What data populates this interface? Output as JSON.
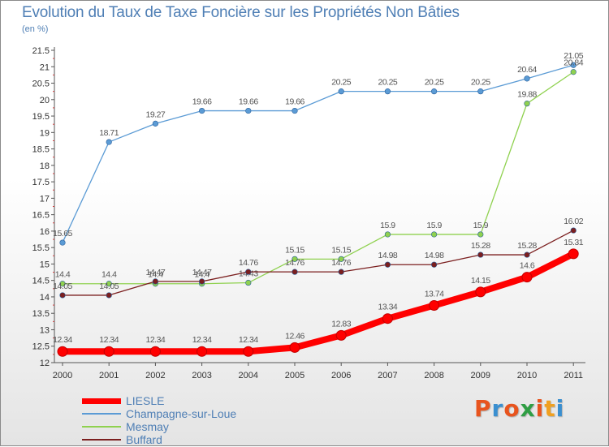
{
  "header": {
    "title": "Evolution du Taux de Taxe Foncière sur les Propriétés Non Bâties",
    "subtitle": "(en %)"
  },
  "brand": {
    "name": "Proxiti",
    "letter_colors": [
      "#e8541e",
      "#3a8fd0",
      "#e8541e",
      "#2f9e44",
      "#e8541e",
      "#f0a020",
      "#3a8fd0"
    ]
  },
  "chart_data": {
    "type": "line",
    "title": "Evolution du Taux de Taxe Foncière sur les Propriétés Non Bâties",
    "ylabel": "(en %)",
    "xlabel": "",
    "x": [
      "2000",
      "2001",
      "2002",
      "2003",
      "2004",
      "2005",
      "2006",
      "2007",
      "2008",
      "2009",
      "2010",
      "2011"
    ],
    "ylim": [
      12,
      21.5
    ],
    "yticks": [
      "12",
      "12.5",
      "13",
      "13.5",
      "14",
      "14.5",
      "15",
      "15.5",
      "16",
      "16.5",
      "17",
      "17.5",
      "18",
      "18.5",
      "19",
      "19.5",
      "20",
      "20.5",
      "21",
      "21.5"
    ],
    "grid": false,
    "legend_position": "bottom-left",
    "series": [
      {
        "name": "LIESLE",
        "color": "#ff0000",
        "labels": [
          "12.34",
          "12.34",
          "12.34",
          "12.34",
          "12.34",
          "12.46",
          "12.83",
          "13.34",
          "13.74",
          "14.15",
          "14.6",
          "15.31"
        ],
        "values": [
          12.34,
          12.34,
          12.34,
          12.34,
          12.34,
          12.46,
          12.83,
          13.34,
          13.74,
          14.15,
          14.6,
          15.31
        ]
      },
      {
        "name": "Champagne-sur-Loue",
        "color": "#5b9bd5",
        "labels": [
          "15.65",
          "18.71",
          "19.27",
          "19.66",
          "19.66",
          "19.66",
          "20.25",
          "20.25",
          "20.25",
          "20.25",
          "20.64",
          "21.05"
        ],
        "values": [
          15.65,
          18.71,
          19.27,
          19.66,
          19.66,
          19.66,
          20.25,
          20.25,
          20.25,
          20.25,
          20.64,
          21.05
        ]
      },
      {
        "name": "Mesmay",
        "color": "#8fd14f",
        "labels": [
          "14.4",
          "14.4",
          "14.4",
          "14.4",
          "14.43",
          "15.15",
          "15.15",
          "15.9",
          "15.9",
          "15.9",
          "19.88",
          "20.84"
        ],
        "values": [
          14.4,
          14.4,
          14.4,
          14.4,
          14.43,
          15.15,
          15.15,
          15.9,
          15.9,
          15.9,
          19.88,
          20.84
        ]
      },
      {
        "name": "Buffard",
        "color": "#7b1f1f",
        "labels": [
          "14.05",
          "14.05",
          "14.47",
          "14.47",
          "14.76",
          "14.76",
          "14.76",
          "14.98",
          "14.98",
          "15.28",
          "15.28",
          "16.02"
        ],
        "values": [
          14.05,
          14.05,
          14.47,
          14.47,
          14.76,
          14.76,
          14.76,
          14.98,
          14.98,
          15.28,
          15.28,
          16.02
        ]
      }
    ]
  }
}
